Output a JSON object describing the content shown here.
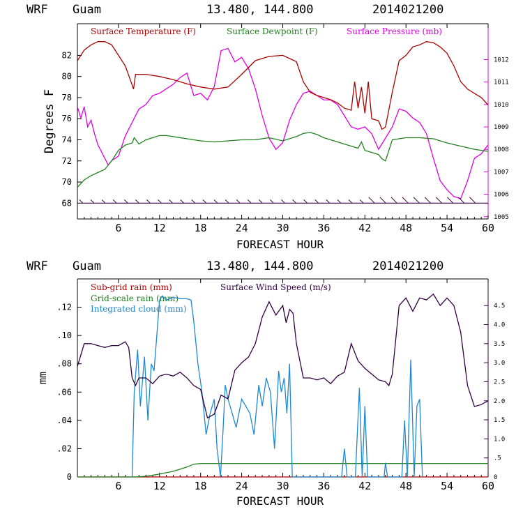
{
  "panel1": {
    "header": {
      "model": "WRF",
      "site": "Guam",
      "coords": "13.480, 144.800",
      "init": "2014021200"
    },
    "xlabel": "FORECAST HOUR",
    "ylabel_left": "Degrees F",
    "legend": [
      "Surface Temperature (F)",
      "Surface Dewpoint (F)",
      "Surface Pressure (mb)"
    ],
    "colors": {
      "temperature": "#aa0000",
      "dewpoint": "#208020",
      "pressure": "#e000e0",
      "wind_barbs": "#3a0040"
    }
  },
  "panel2": {
    "header": {
      "model": "WRF",
      "site": "Guam",
      "coords": "13.480, 144.800",
      "init": "2014021200"
    },
    "xlabel": "FORECAST HOUR",
    "ylabel_left": "mm",
    "legend": [
      "Sub-grid rain (mm)",
      "Grid-scale rain (mm)",
      "Integrated cloud (mm)",
      "Surface Wind Speed (m/s)"
    ],
    "colors": {
      "subgrid": "#aa0000",
      "gridscale": "#208020",
      "cloud": "#1e88d0",
      "wind": "#300040"
    }
  },
  "chart_data": [
    {
      "type": "line",
      "x_ticks": [
        "6",
        "12",
        "18",
        "24",
        "30",
        "36",
        "42",
        "48",
        "54",
        "60"
      ],
      "x_range": [
        0,
        60
      ],
      "y_left": {
        "range": [
          66.5,
          85
        ],
        "ticks": [
          "68",
          "70",
          "72",
          "74",
          "76",
          "78",
          "80",
          "82"
        ]
      },
      "y_right": {
        "range": [
          1004.9,
          1013.6
        ],
        "ticks": [
          "1005",
          "1006",
          "1007",
          "1008",
          "1009",
          "1010",
          "1011",
          "1012"
        ]
      },
      "series": [
        {
          "name": "Surface Temperature (F)",
          "axis": "left",
          "x": [
            0,
            1,
            2,
            3,
            4,
            5,
            6,
            7,
            8,
            8.2,
            8.5,
            10,
            12,
            14,
            16,
            18,
            20,
            22,
            24,
            26,
            28,
            30,
            31,
            32,
            33,
            34,
            35,
            36,
            37,
            38,
            39,
            40,
            40.5,
            41,
            41.5,
            42,
            42.5,
            43,
            44,
            44.5,
            45,
            46,
            47,
            48,
            49,
            50,
            51,
            52,
            53,
            54,
            55,
            56,
            57,
            58,
            59,
            60
          ],
          "y": [
            81.5,
            82.5,
            83,
            83.3,
            83.3,
            83,
            82,
            81,
            79.2,
            78.8,
            80.2,
            80.2,
            80,
            79.7,
            79.3,
            79,
            78.8,
            79,
            80.2,
            81.5,
            81.9,
            82,
            81.7,
            81.4,
            79.5,
            78.5,
            78.2,
            78,
            77.8,
            77.5,
            77,
            76.8,
            79.5,
            77,
            79,
            76.5,
            79.5,
            76,
            75.8,
            75,
            75.2,
            78.5,
            81.5,
            82,
            82.8,
            83,
            83.3,
            83.2,
            82.8,
            82.2,
            81,
            79.5,
            78.8,
            78.4,
            78,
            77.3
          ]
        },
        {
          "name": "Surface Dewpoint (F)",
          "axis": "left",
          "x": [
            0,
            1,
            2,
            3,
            4,
            5,
            6,
            7,
            8,
            8.3,
            9,
            10,
            11,
            12,
            13,
            14,
            16,
            18,
            20,
            22,
            24,
            26,
            28,
            30,
            32,
            33,
            34,
            35,
            36,
            38,
            40,
            41,
            41.5,
            42,
            43,
            44,
            44.5,
            45,
            46,
            48,
            50,
            52,
            54,
            56,
            58,
            60
          ],
          "y": [
            69.5,
            70.2,
            70.6,
            70.9,
            71.2,
            72,
            73,
            73.5,
            73.7,
            74.2,
            73.6,
            74,
            74.2,
            74.4,
            74.4,
            74.3,
            74.1,
            73.9,
            73.8,
            73.9,
            74,
            74,
            74.2,
            73.9,
            74.3,
            74.6,
            74.7,
            74.5,
            74.2,
            73.8,
            73.4,
            73.2,
            73.8,
            73,
            72.8,
            72.6,
            72.2,
            72,
            74,
            74.2,
            74.2,
            74.1,
            73.7,
            73.4,
            73.1,
            72.9
          ]
        },
        {
          "name": "Surface Pressure (mb)",
          "axis": "right",
          "x": [
            0,
            0.5,
            1,
            1.5,
            2,
            2.5,
            3,
            3.5,
            4,
            4.5,
            5,
            6,
            7,
            8,
            9,
            10,
            11,
            12,
            13,
            14,
            15,
            16,
            17,
            18,
            19,
            20,
            21,
            22,
            23,
            24,
            25,
            26,
            27,
            28,
            29,
            30,
            31,
            32,
            33,
            34,
            35,
            36,
            37,
            38,
            39,
            40,
            41,
            42,
            43,
            44,
            45,
            46,
            47,
            48,
            49,
            50,
            51,
            52,
            53,
            54,
            55,
            56,
            57,
            58,
            59,
            60
          ],
          "y": [
            1009.9,
            1009.4,
            1009.9,
            1009,
            1009.3,
            1008.7,
            1008.2,
            1007.9,
            1007.6,
            1007.3,
            1007.5,
            1007.7,
            1008.6,
            1009.2,
            1009.8,
            1010,
            1010.4,
            1010.5,
            1010.7,
            1010.9,
            1011.2,
            1011.4,
            1010.4,
            1010.5,
            1010.2,
            1010.8,
            1012.4,
            1012.5,
            1011.9,
            1012.1,
            1011.6,
            1010.7,
            1009.5,
            1008.5,
            1008,
            1008.3,
            1009.3,
            1010,
            1010.5,
            1010.6,
            1010.4,
            1010.2,
            1010.2,
            1010,
            1009.5,
            1009,
            1008.9,
            1009,
            1008.7,
            1008,
            1008.5,
            1009,
            1009.8,
            1009.7,
            1009.4,
            1009.2,
            1008.7,
            1007.6,
            1006.6,
            1006.2,
            1005.9,
            1005.8,
            1006.6,
            1007.6,
            1007.8,
            1008.2
          ]
        }
      ],
      "wind_barbs": {
        "count": 36
      }
    },
    {
      "type": "line",
      "x_ticks": [
        "6",
        "12",
        "18",
        "24",
        "30",
        "36",
        "42",
        "48",
        "54",
        "60"
      ],
      "x_range": [
        0,
        60
      ],
      "y_left": {
        "range": [
          0,
          0.14
        ],
        "ticks": [
          "0",
          ".02",
          ".04",
          ".06",
          ".08",
          ".10",
          ".12"
        ]
      },
      "y_right": {
        "range": [
          0,
          5.2
        ],
        "ticks": [
          "0",
          ".5",
          "1.0",
          "1.5",
          "2.0",
          "2.5",
          "3.0",
          "3.5",
          "4.0",
          "4.5"
        ]
      },
      "series": [
        {
          "name": "Sub-grid rain (mm)",
          "axis": "left",
          "x": [
            0,
            60
          ],
          "y": [
            0,
            0
          ]
        },
        {
          "name": "Grid-scale rain (mm)",
          "axis": "left",
          "x": [
            0,
            8.5,
            10,
            12,
            14,
            16,
            17,
            18,
            20,
            24,
            30,
            40,
            50,
            60
          ],
          "y": [
            0,
            0,
            0.0005,
            0.002,
            0.004,
            0.007,
            0.009,
            0.0095,
            0.0095,
            0.0095,
            0.0095,
            0.0095,
            0.0095,
            0.0095
          ]
        },
        {
          "name": "Integrated cloud (mm)",
          "axis": "left",
          "x": [
            8,
            8.3,
            8.8,
            9.2,
            9.8,
            10.3,
            10.8,
            11.2,
            11.6,
            12,
            12.4,
            13,
            14,
            15,
            16,
            16.6,
            17,
            17.6,
            18.2,
            18.8,
            19.4,
            20,
            20.4,
            20.9,
            21.3,
            21.6,
            22,
            22.6,
            23.2,
            24,
            24.6,
            25.2,
            25.8,
            26.5,
            27,
            27.6,
            28.2,
            28.8,
            29.4,
            29.8,
            30.2,
            30.6,
            31,
            31.4,
            38.6,
            39,
            39.4,
            40.6,
            41.2,
            41.6,
            42,
            42.4,
            44.8,
            45,
            45.3,
            47.4,
            47.8,
            48.2,
            48.7,
            49.2,
            49.6,
            50,
            50.4
          ],
          "y": [
            0,
            0.06,
            0.09,
            0.05,
            0.085,
            0.04,
            0.08,
            0.075,
            0.1,
            0.125,
            0.128,
            0.125,
            0.127,
            0.126,
            0.126,
            0.125,
            0.11,
            0.08,
            0.06,
            0.03,
            0.045,
            0.055,
            0.02,
            0,
            0.035,
            0.065,
            0.055,
            0.045,
            0.035,
            0.055,
            0.05,
            0.045,
            0.03,
            0.065,
            0.05,
            0.07,
            0.06,
            0.02,
            0.075,
            0.06,
            0.07,
            0.045,
            0.08,
            0,
            0,
            0.02,
            0,
            0,
            0.063,
            0,
            0.05,
            0,
            0,
            0.01,
            0,
            0,
            0.04,
            0,
            0.083,
            0,
            0.05,
            0.055,
            0
          ]
        },
        {
          "name": "Surface Wind Speed (m/s)",
          "axis": "right",
          "x": [
            0,
            0.5,
            1,
            2,
            3,
            4,
            5,
            6,
            7,
            7.5,
            8,
            8.5,
            9,
            10,
            11,
            12,
            13,
            14,
            15,
            16,
            17,
            18,
            19,
            20,
            21,
            22,
            23,
            24,
            25,
            26,
            27,
            28,
            29,
            30,
            30.5,
            31,
            31.5,
            32,
            33,
            34,
            35,
            36,
            37,
            38,
            39,
            40,
            41,
            42,
            43,
            44,
            45,
            45.5,
            46,
            47,
            48,
            49,
            50,
            51,
            52,
            53,
            54,
            55,
            56,
            57,
            58,
            59,
            60
          ],
          "y": [
            2.9,
            3.2,
            3.5,
            3.5,
            3.45,
            3.4,
            3.45,
            3.45,
            3.55,
            3.4,
            2.6,
            2.4,
            2.6,
            2.6,
            2.45,
            2.65,
            2.7,
            2.65,
            2.75,
            2.6,
            2.4,
            2.3,
            1.55,
            1.65,
            2.15,
            2.05,
            2.8,
            3,
            3.15,
            3.5,
            4.2,
            4.6,
            4.25,
            4.5,
            4.05,
            4.4,
            4.3,
            3.5,
            2.6,
            2.6,
            2.55,
            2.6,
            2.45,
            2.65,
            2.75,
            3.5,
            3.05,
            2.85,
            2.7,
            2.55,
            2.5,
            2.4,
            2.7,
            4.5,
            4.7,
            4.35,
            4.7,
            4.65,
            4.8,
            4.5,
            4.7,
            4.5,
            3.8,
            2.4,
            1.85,
            1.9,
            2.0
          ]
        }
      ]
    }
  ]
}
